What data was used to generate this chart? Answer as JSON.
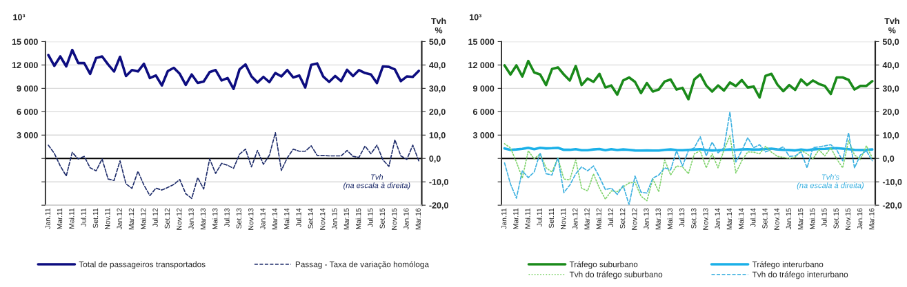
{
  "chart_data": [
    {
      "type": "line",
      "ylabel": "10³",
      "y2label": "Tvh\n%",
      "categories": [
        "Jan.11",
        null,
        "Mar.11",
        null,
        "Mai.11",
        null,
        "Jul.11",
        null,
        "Set.11",
        null,
        "Nov.11",
        null,
        "Jan.12",
        null,
        "Mar.12",
        null,
        "Mai.12",
        null,
        "Jul.12",
        null,
        "Set.12",
        null,
        "Nov.12",
        null,
        "Jan.13",
        null,
        "Mar.13",
        null,
        "Mai.13",
        null,
        "Jul.13",
        null,
        "Set.13",
        null,
        "Nov.13",
        null,
        "Jan.14",
        null,
        "Mar.14",
        null,
        "Mai.14",
        null,
        "Jul.14",
        null,
        "Set.14",
        null,
        "Nov.14",
        null,
        "Jan.15",
        null,
        "Mar.15",
        null,
        "Mai.15",
        null,
        "Jul.15",
        null,
        "Set.15",
        null,
        "Nov.15",
        null,
        "Jan.16",
        null,
        "Mar.16"
      ],
      "ylim": [
        -6000,
        15000
      ],
      "yticks": [
        {
          "value": -6000,
          "label": null
        },
        {
          "value": -3000,
          "label": null
        },
        {
          "value": 0,
          "label": null
        },
        {
          "value": 3000,
          "label": "3 000"
        },
        {
          "value": 6000,
          "label": "6 000"
        },
        {
          "value": 9000,
          "label": "9 000"
        },
        {
          "value": 12000,
          "label": "12 000"
        },
        {
          "value": 15000,
          "label": "15 000"
        }
      ],
      "y2lim": [
        -20,
        50
      ],
      "y2ticks": [
        {
          "value": -20,
          "label": "-20,0"
        },
        {
          "value": -10,
          "label": "-10,0"
        },
        {
          "value": 0,
          "label": "0,0"
        },
        {
          "value": 10,
          "label": "10,0"
        },
        {
          "value": 20,
          "label": "20,0"
        },
        {
          "value": 30,
          "label": "30,0"
        },
        {
          "value": 40,
          "label": "40,0"
        },
        {
          "value": 50,
          "label": "50,0"
        }
      ],
      "grid": "y",
      "legend": "bottom",
      "marker": "none",
      "ref_lines": [
        {
          "axis": "y",
          "value": 0,
          "color": "#000000"
        }
      ],
      "annotations": [
        "Tvh\n(na escala à direita)"
      ],
      "series": [
        {
          "name": "Total de passageiros transportados",
          "color": "#0d0d80",
          "axis": "y",
          "line_style": "solid",
          "values": [
            13290,
            11890,
            13100,
            11820,
            13930,
            12250,
            12250,
            10860,
            12900,
            13100,
            12070,
            11170,
            13050,
            10580,
            11350,
            11170,
            12150,
            10320,
            10650,
            9370,
            11220,
            11640,
            10860,
            9440,
            10780,
            9700,
            9880,
            11090,
            11350,
            10010,
            10320,
            8930,
            11430,
            12070,
            10530,
            9750,
            10470,
            9800,
            10970,
            10530,
            11350,
            10400,
            10650,
            9110,
            12020,
            12200,
            10530,
            9830,
            10580,
            9930,
            11380,
            10580,
            11350,
            10970,
            10780,
            9680,
            11820,
            11760,
            11430,
            9930,
            10530,
            10470,
            11250
          ]
        },
        {
          "name": "Passag - Taxa de variação homóloga",
          "color": "#1f2d6b",
          "axis": "y2",
          "line_style": "dashed",
          "values": [
            5.7,
            2.2,
            -3.2,
            -7.5,
            2.6,
            -0.2,
            0.9,
            -4.0,
            -5.3,
            -0.2,
            -8.8,
            -9.4,
            -1.0,
            -10.9,
            -12.8,
            -5.5,
            -11.4,
            -15.9,
            -12.7,
            -13.5,
            -12.4,
            -11.1,
            -9.0,
            -15.1,
            -17.1,
            -8.2,
            -13.1,
            -0.2,
            -6.4,
            -2.1,
            -2.9,
            -4.2,
            1.8,
            4.0,
            -3.6,
            3.4,
            -2.5,
            1.4,
            11.0,
            -5.1,
            0.3,
            4.0,
            3.1,
            3.1,
            5.4,
            1.3,
            1.3,
            1.1,
            1.1,
            1.1,
            3.4,
            0.9,
            0.5,
            5.3,
            2.0,
            5.7,
            -0.6,
            -3.4,
            8.0,
            1.1,
            -0.4,
            5.7,
            -1.0
          ]
        }
      ]
    },
    {
      "type": "line",
      "ylabel": "10³",
      "y2label": "Tvh\n%",
      "categories": [
        "Jan.11",
        null,
        "Mar.11",
        null,
        "Mai.11",
        null,
        "Jul.11",
        null,
        "Set.11",
        null,
        "Nov.11",
        null,
        "Jan.12",
        null,
        "Mar.12",
        null,
        "Mai.12",
        null,
        "Jul.12",
        null,
        "Set.12",
        null,
        "Nov.12",
        null,
        "Jan.13",
        null,
        "Mar.13",
        null,
        "Mai.13",
        null,
        "Jul.13",
        null,
        "Set.13",
        null,
        "Nov.13",
        null,
        "Jan.14",
        null,
        "Mar.14",
        null,
        "Mai.14",
        null,
        "Jul.14",
        null,
        "Set.14",
        null,
        "Nov.14",
        null,
        "Jan.15",
        null,
        "Mar.15",
        null,
        "Mai.15",
        null,
        "Jul.15",
        null,
        "Set.15",
        null,
        "Nov.15",
        null,
        "Jan.16",
        null,
        "Mar.16"
      ],
      "ylim": [
        -6000,
        15000
      ],
      "yticks": [
        {
          "value": -6000,
          "label": null
        },
        {
          "value": -3000,
          "label": null
        },
        {
          "value": 0,
          "label": null
        },
        {
          "value": 3000,
          "label": "3 000"
        },
        {
          "value": 6000,
          "label": "6 000"
        },
        {
          "value": 9000,
          "label": "9 000"
        },
        {
          "value": 12000,
          "label": "12 000"
        },
        {
          "value": 15000,
          "label": "15 000"
        }
      ],
      "y2lim": [
        -20,
        50
      ],
      "y2ticks": [
        {
          "value": -20,
          "label": "-20,0"
        },
        {
          "value": -10,
          "label": "-10,0"
        },
        {
          "value": 0,
          "label": "0,0"
        },
        {
          "value": 10,
          "label": "10,0"
        },
        {
          "value": 20,
          "label": "20,0"
        },
        {
          "value": 30,
          "label": "30,0"
        },
        {
          "value": 40,
          "label": "40,0"
        },
        {
          "value": 50,
          "label": "50,0"
        }
      ],
      "grid": "y",
      "legend": "bottom",
      "marker": "none",
      "ref_lines": [
        {
          "axis": "y",
          "value": 0,
          "color": "#000000"
        }
      ],
      "annotations": [
        "Tvh's\n(na escala à direita)"
      ],
      "series": [
        {
          "name": "Tráfego suburbano",
          "color": "#1a8a1a",
          "axis": "y",
          "line_style": "solid",
          "values": [
            11950,
            10780,
            11950,
            10530,
            12510,
            11040,
            10780,
            9420,
            11480,
            11690,
            10780,
            10010,
            11870,
            9420,
            10270,
            9830,
            10860,
            9110,
            9370,
            8200,
            10010,
            10400,
            9830,
            8390,
            9680,
            8590,
            8850,
            9880,
            10140,
            8850,
            9060,
            7610,
            10140,
            10780,
            9370,
            8590,
            9370,
            8720,
            9750,
            9290,
            10060,
            9110,
            9240,
            7820,
            10600,
            10860,
            9490,
            8640,
            9420,
            8800,
            10140,
            9420,
            10010,
            9570,
            9310,
            8280,
            10400,
            10400,
            10090,
            8850,
            9310,
            9310,
            9930
          ]
        },
        {
          "name": "Tráfego interurbano",
          "color": "#1ab0e8",
          "axis": "y",
          "line_style": "solid",
          "values": [
            1290,
            1110,
            1160,
            1240,
            1370,
            1190,
            1370,
            1290,
            1320,
            1370,
            1110,
            1110,
            1190,
            1060,
            1060,
            1160,
            1210,
            1060,
            1190,
            1080,
            1160,
            1110,
            1030,
            1010,
            1030,
            1010,
            1010,
            1110,
            1160,
            1080,
            1060,
            1110,
            1140,
            1190,
            1080,
            1030,
            1060,
            1110,
            1160,
            1110,
            1160,
            1190,
            1140,
            1160,
            1210,
            1260,
            1160,
            1110,
            1080,
            1030,
            1140,
            1060,
            1160,
            1210,
            1240,
            1290,
            1320,
            1260,
            1190,
            1110,
            1080,
            1110,
            1160
          ]
        },
        {
          "name": "Tvh do tráfego suburbano",
          "color": "#7fd36b",
          "axis": "y2",
          "line_style": "dotted",
          "values": [
            6.3,
            4.5,
            -1.5,
            -8.4,
            3.3,
            -0.2,
            2.0,
            -4.0,
            -5.8,
            0.3,
            -8.8,
            -9.2,
            -0.6,
            -12.7,
            -13.9,
            -6.6,
            -12.7,
            -17.4,
            -13.9,
            -14.2,
            -12.2,
            -10.5,
            -10.2,
            -16.1,
            -18.1,
            -8.8,
            -14.2,
            -0.6,
            -7.1,
            -3.2,
            -3.6,
            -6.5,
            2.0,
            3.3,
            -4.0,
            2.0,
            -4.0,
            3.7,
            9.7,
            -6.2,
            -1.0,
            2.8,
            2.7,
            2.0,
            5.2,
            2.7,
            0.9,
            0.5,
            0.0,
            0.5,
            3.4,
            2.0,
            -0.2,
            3.7,
            1.1,
            4.6,
            -0.2,
            -4.0,
            7.6,
            1.5,
            -0.4,
            5.4,
            0.3
          ]
        },
        {
          "name": "Tvh do tráfego interurbano",
          "color": "#3bb0e0",
          "axis": "y2",
          "line_style": "dashed",
          "values": [
            -1.9,
            -10.9,
            -17.0,
            -5.3,
            -8.2,
            -5.8,
            2.4,
            -6.5,
            -7.1,
            0.3,
            -14.6,
            -11.4,
            -6.6,
            -3.6,
            -5.3,
            -3.2,
            -7.9,
            -13.3,
            -12.7,
            -15.4,
            -11.6,
            -19.8,
            -7.5,
            -14.4,
            -14.8,
            -8.4,
            -7.1,
            -4.0,
            -4.9,
            3.3,
            -3.2,
            3.3,
            4.6,
            9.3,
            1.1,
            7.0,
            2.4,
            4.6,
            19.9,
            -1.5,
            3.3,
            8.9,
            4.6,
            5.9,
            2.8,
            3.9,
            3.7,
            5.0,
            0.9,
            1.1,
            2.8,
            -4.0,
            4.6,
            5.0,
            5.4,
            5.9,
            3.7,
            -1.0,
            11.0,
            -4.0,
            1.5,
            3.3,
            -1.0
          ]
        }
      ]
    }
  ]
}
